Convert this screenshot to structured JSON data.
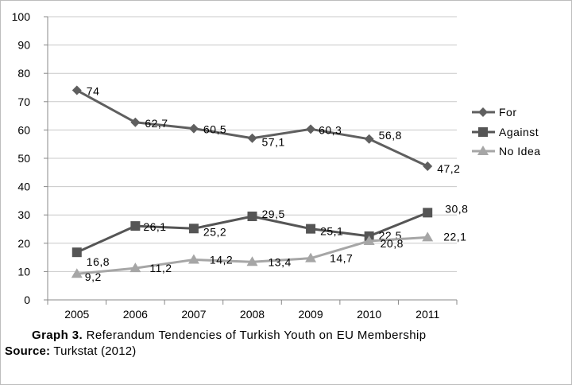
{
  "chart_data": {
    "type": "line",
    "categories": [
      "2005",
      "2006",
      "2007",
      "2008",
      "2009",
      "2010",
      "2011"
    ],
    "series": [
      {
        "name": "For",
        "values": [
          74,
          62.7,
          60.5,
          57.1,
          60.3,
          56.8,
          47.2
        ],
        "labels": [
          "74",
          "62,7",
          "60,5",
          "57,1",
          "60,3",
          "56,8",
          "47,2"
        ],
        "color": "#5f5f5f",
        "marker": "diamond"
      },
      {
        "name": "Against",
        "values": [
          16.8,
          26.1,
          25.2,
          29.5,
          25.1,
          22.5,
          30.8
        ],
        "labels": [
          "16,8",
          "26,1",
          "25,2",
          "29,5",
          "25,1",
          "22,5",
          "30,8"
        ],
        "color": "#555555",
        "marker": "square"
      },
      {
        "name": "No Idea",
        "values": [
          9.2,
          11.2,
          14.2,
          13.4,
          14.7,
          20.8,
          22.1
        ],
        "labels": [
          "9,2",
          "11,2",
          "14,2",
          "13,4",
          "14,7",
          "20,8",
          "22,1"
        ],
        "color": "#a6a6a6",
        "marker": "triangle"
      }
    ],
    "ylim": [
      0,
      100
    ],
    "yticks": [
      "0",
      "10",
      "20",
      "30",
      "40",
      "50",
      "60",
      "70",
      "80",
      "90",
      "100"
    ],
    "grid": true,
    "legend_position": "right"
  },
  "caption": {
    "graph_label": "Graph 3.",
    "graph_title": "Referandum Tendencies of Turkish Youth on EU Membership",
    "source_label": "Source:",
    "source_text": "Turkstat (2012)"
  }
}
